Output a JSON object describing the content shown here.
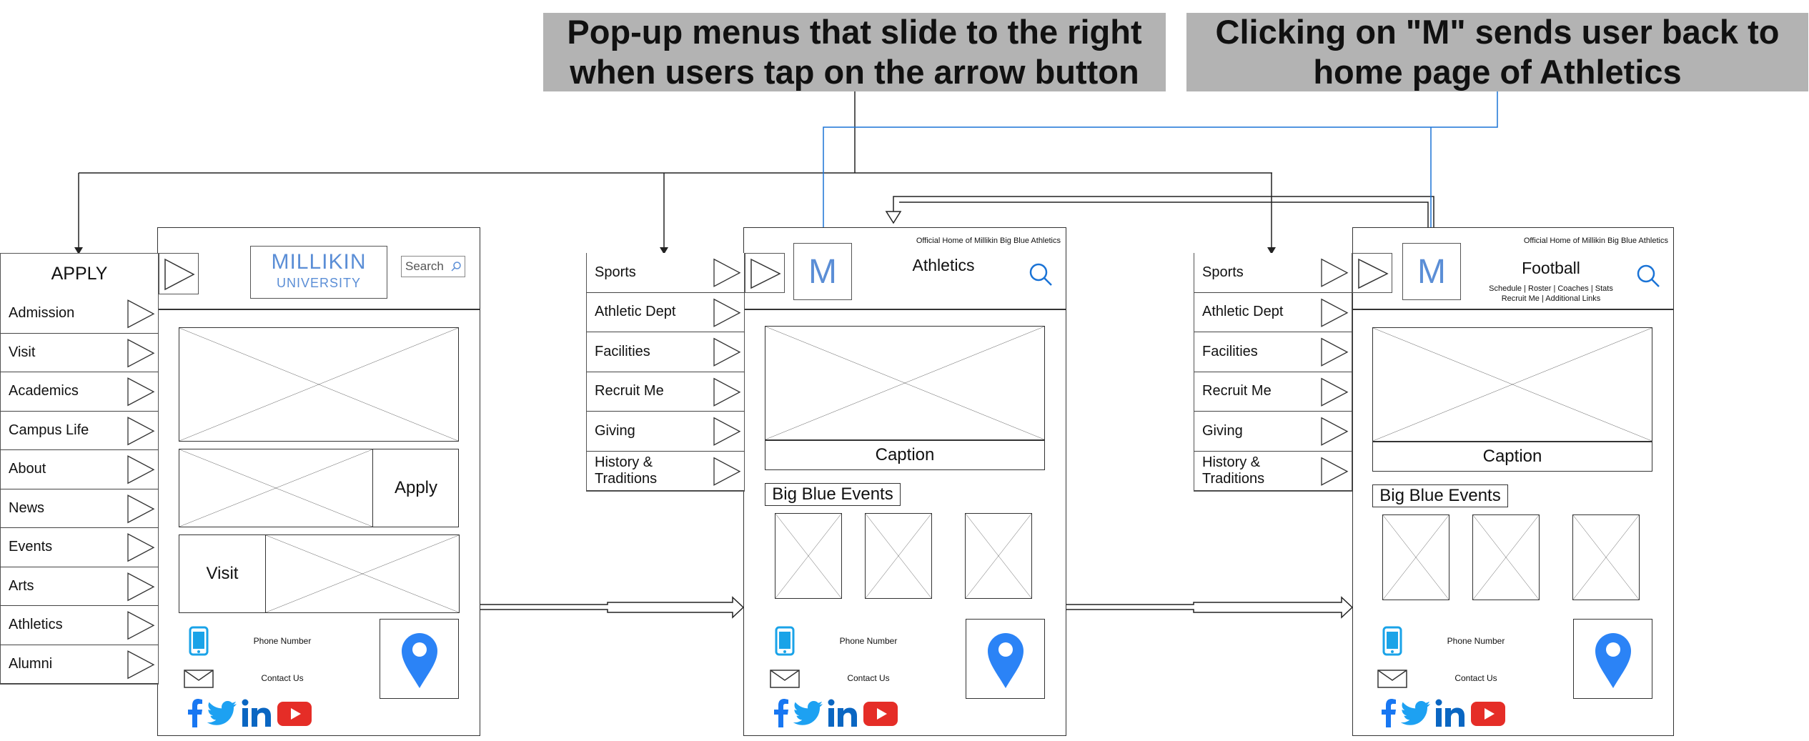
{
  "annotations": {
    "popup_note": "Pop-up menus that slide to the right when users tap on the arrow button",
    "m_note": "Clicking on \"M\" sends user back to home page of Athletics"
  },
  "home": {
    "logo_top": "MILLIKIN",
    "logo_bottom": "UNIVERSITY",
    "search_placeholder": "Search",
    "menu_title": "APPLY",
    "menu_items": [
      "Admission",
      "Visit",
      "Academics",
      "Campus Life",
      "About",
      "News",
      "Events",
      "Arts",
      "Athletics",
      "Alumni"
    ],
    "apply_label": "Apply",
    "visit_label": "Visit",
    "phone_label": "Phone Number",
    "contact_label": "Contact Us"
  },
  "athletics": {
    "tagline": "Official Home of Millikin Big Blue Athletics",
    "m_label": "M",
    "title": "Athletics",
    "menu_items": [
      "Sports",
      "Athletic Dept",
      "Facilities",
      "Recruit Me",
      "Giving",
      "History & Traditions"
    ],
    "caption": "Caption",
    "events_title": "Big Blue Events",
    "phone_label": "Phone Number",
    "contact_label": "Contact Us"
  },
  "football": {
    "tagline": "Official Home of Millikin Big Blue Athletics",
    "m_label": "M",
    "title": "Football",
    "sublinks_1": "Schedule | Roster | Coaches | Stats",
    "sublinks_2": "Recruit Me | Additional Links",
    "menu_items": [
      "Sports",
      "Athletic Dept",
      "Facilities",
      "Recruit Me",
      "Giving",
      "History & Traditions"
    ],
    "caption": "Caption",
    "events_title": "Big Blue Events",
    "phone_label": "Phone Number",
    "contact_label": "Contact Us"
  },
  "colors": {
    "note_bg": "#b3b3b3",
    "accent_blue": "#5b8ed6",
    "connector_blue": "#1a73d6",
    "pin_blue": "#2b83f6",
    "facebook": "#1877f2",
    "twitter": "#1da1f2",
    "linkedin": "#0a66c2",
    "youtube": "#e52d27"
  },
  "icons": [
    "arrow-triangle-icon",
    "search-icon",
    "phone-icon",
    "mail-icon",
    "location-pin-icon",
    "facebook-icon",
    "twitter-icon",
    "linkedin-icon",
    "youtube-icon"
  ]
}
